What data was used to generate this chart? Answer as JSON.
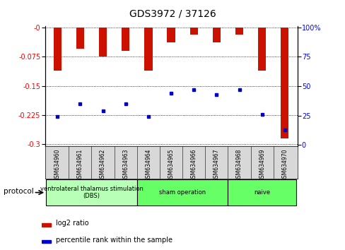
{
  "title": "GDS3972 / 37126",
  "samples": [
    "GSM634960",
    "GSM634961",
    "GSM634962",
    "GSM634963",
    "GSM634964",
    "GSM634965",
    "GSM634966",
    "GSM634967",
    "GSM634968",
    "GSM634969",
    "GSM634970"
  ],
  "log2_ratio": [
    -0.11,
    -0.055,
    -0.075,
    -0.06,
    -0.11,
    -0.038,
    -0.018,
    -0.038,
    -0.018,
    -0.11,
    -0.285
  ],
  "percentile_rank": [
    24,
    35,
    29,
    35,
    24,
    44,
    47,
    43,
    47,
    26,
    13
  ],
  "ylim_left": [
    -0.305,
    0.003
  ],
  "ylim_right": [
    -1,
    101
  ],
  "yticks_left": [
    0,
    -0.075,
    -0.15,
    -0.225,
    -0.3
  ],
  "yticks_right": [
    0,
    25,
    50,
    75,
    100
  ],
  "groups": [
    {
      "label": "ventrolateral thalamus stimulation\n(DBS)",
      "start": 0,
      "end": 3,
      "color": "#b8ffb8"
    },
    {
      "label": "sham operation",
      "start": 4,
      "end": 7,
      "color": "#66ff66"
    },
    {
      "label": "naive",
      "start": 8,
      "end": 10,
      "color": "#66ff66"
    }
  ],
  "bar_color": "#cc1100",
  "dot_color": "#0000cc",
  "bar_width": 0.35,
  "title_fontsize": 10,
  "tick_fontsize": 7,
  "label_fontsize": 5.5
}
